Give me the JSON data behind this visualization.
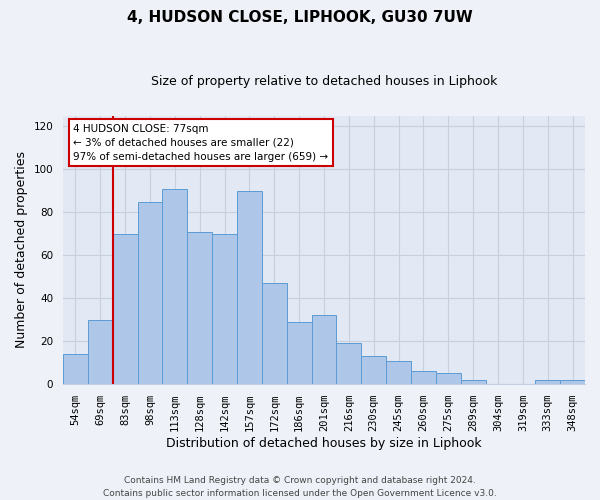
{
  "title": "4, HUDSON CLOSE, LIPHOOK, GU30 7UW",
  "subtitle": "Size of property relative to detached houses in Liphook",
  "xlabel": "Distribution of detached houses by size in Liphook",
  "ylabel": "Number of detached properties",
  "footer_line1": "Contains HM Land Registry data © Crown copyright and database right 2024.",
  "footer_line2": "Contains public sector information licensed under the Open Government Licence v3.0.",
  "categories": [
    "54sqm",
    "69sqm",
    "83sqm",
    "98sqm",
    "113sqm",
    "128sqm",
    "142sqm",
    "157sqm",
    "172sqm",
    "186sqm",
    "201sqm",
    "216sqm",
    "230sqm",
    "245sqm",
    "260sqm",
    "275sqm",
    "289sqm",
    "304sqm",
    "319sqm",
    "333sqm",
    "348sqm"
  ],
  "values": [
    14,
    30,
    70,
    85,
    91,
    71,
    70,
    90,
    47,
    29,
    32,
    19,
    13,
    11,
    6,
    5,
    2,
    0,
    0,
    2,
    2
  ],
  "bar_color": "#aec6e8",
  "bar_edge_color": "#5b9bd5",
  "reference_line_color": "#cc0000",
  "annotation_line1": "4 HUDSON CLOSE: 77sqm",
  "annotation_line2": "← 3% of detached houses are smaller (22)",
  "annotation_line3": "97% of semi-detached houses are larger (659) →",
  "annotation_box_color": "#ffffff",
  "annotation_box_edge_color": "#cc0000",
  "ylim": [
    0,
    125
  ],
  "yticks": [
    0,
    20,
    40,
    60,
    80,
    100,
    120
  ],
  "background_color": "#eef2f8",
  "plot_background_color": "#e2e9f5",
  "grid_color": "#c8d0e0",
  "title_fontsize": 11,
  "subtitle_fontsize": 9,
  "tick_fontsize": 7.5,
  "ylabel_fontsize": 9,
  "xlabel_fontsize": 9,
  "footer_fontsize": 6.5
}
